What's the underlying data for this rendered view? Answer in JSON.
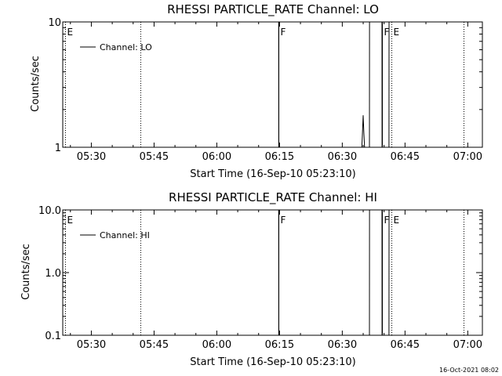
{
  "chart_data": [
    {
      "type": "line",
      "title": "RHESSI PARTICLE_RATE Channel: LO",
      "xlabel": "Start Time (16-Sep-10 05:23:10)",
      "ylabel": "Counts/sec",
      "yscale": "log",
      "ylim": [
        1,
        10
      ],
      "xlim": [
        "05:23:10",
        "07:03:30"
      ],
      "y_ticks": [
        {
          "value": 1,
          "label": "1"
        },
        {
          "value": 10,
          "label": "10"
        }
      ],
      "x_ticks": [
        {
          "value": "05:30",
          "label": "05:30"
        },
        {
          "value": "05:45",
          "label": "05:45"
        },
        {
          "value": "06:00",
          "label": "06:00"
        },
        {
          "value": "06:15",
          "label": "06:15"
        },
        {
          "value": "06:30",
          "label": "06:30"
        },
        {
          "value": "06:45",
          "label": "06:45"
        },
        {
          "value": "07:00",
          "label": "07:00"
        }
      ],
      "legend": {
        "label": "Channel: LO",
        "position": "top-left"
      },
      "series": [
        {
          "name": "Channel: LO",
          "points": [
            {
              "x": "06:14:48",
              "y": 10
            },
            {
              "x": "06:14:49",
              "y": 1
            },
            {
              "x": "06:34:40",
              "y": 1
            },
            {
              "x": "06:34:50",
              "y": 1.3
            },
            {
              "x": "06:35:00",
              "y": 1.8
            },
            {
              "x": "06:35:10",
              "y": 1.3
            },
            {
              "x": "06:35:20",
              "y": 1
            },
            {
              "x": "06:36:30",
              "y": 1
            },
            {
              "x": "06:36:31",
              "y": 10
            },
            {
              "x": "06:39:30",
              "y": 10
            },
            {
              "x": "06:39:31",
              "y": 1
            },
            {
              "x": "06:41:10",
              "y": 1
            },
            {
              "x": "06:41:11",
              "y": 10
            }
          ]
        }
      ],
      "markers": [
        {
          "time": "05:23:40",
          "style": "dotted",
          "label": "E"
        },
        {
          "time": "05:41:40",
          "style": "dotted",
          "label": ""
        },
        {
          "time": "06:14:48",
          "style": "solid",
          "label": "F"
        },
        {
          "time": "06:39:30",
          "style": "solid",
          "label": "F"
        },
        {
          "time": "06:41:40",
          "style": "dotted",
          "label": "E"
        },
        {
          "time": "06:59:00",
          "style": "dotted",
          "label": ""
        }
      ]
    },
    {
      "type": "line",
      "title": "RHESSI PARTICLE_RATE Channel: HI",
      "xlabel": "Start Time (16-Sep-10 05:23:10)",
      "ylabel": "Counts/sec",
      "yscale": "log",
      "ylim": [
        0.1,
        10
      ],
      "xlim": [
        "05:23:10",
        "07:03:30"
      ],
      "y_ticks": [
        {
          "value": 0.1,
          "label": "0.1"
        },
        {
          "value": 1,
          "label": "1.0"
        },
        {
          "value": 10,
          "label": "10.0"
        }
      ],
      "x_ticks": [
        {
          "value": "05:30",
          "label": "05:30"
        },
        {
          "value": "05:45",
          "label": "05:45"
        },
        {
          "value": "06:00",
          "label": "06:00"
        },
        {
          "value": "06:15",
          "label": "06:15"
        },
        {
          "value": "06:30",
          "label": "06:30"
        },
        {
          "value": "06:45",
          "label": "06:45"
        },
        {
          "value": "07:00",
          "label": "07:00"
        }
      ],
      "legend": {
        "label": "Channel: HI",
        "position": "top-left"
      },
      "series": [
        {
          "name": "Channel: HI",
          "points": [
            {
              "x": "06:14:48",
              "y": 10
            },
            {
              "x": "06:14:49",
              "y": 0.1
            },
            {
              "x": "06:36:30",
              "y": 0.1
            },
            {
              "x": "06:36:31",
              "y": 10
            },
            {
              "x": "06:39:30",
              "y": 10
            },
            {
              "x": "06:39:31",
              "y": 0.1
            },
            {
              "x": "06:41:10",
              "y": 0.1
            },
            {
              "x": "06:41:11",
              "y": 10
            }
          ]
        }
      ],
      "markers": [
        {
          "time": "05:23:40",
          "style": "dotted",
          "label": "E"
        },
        {
          "time": "05:41:40",
          "style": "dotted",
          "label": ""
        },
        {
          "time": "06:14:48",
          "style": "solid",
          "label": "F"
        },
        {
          "time": "06:39:30",
          "style": "solid",
          "label": "F"
        },
        {
          "time": "06:41:40",
          "style": "dotted",
          "label": "E"
        },
        {
          "time": "06:59:00",
          "style": "dotted",
          "label": ""
        }
      ]
    }
  ],
  "footer": {
    "timestamp": "16-Oct-2021 08:02"
  }
}
